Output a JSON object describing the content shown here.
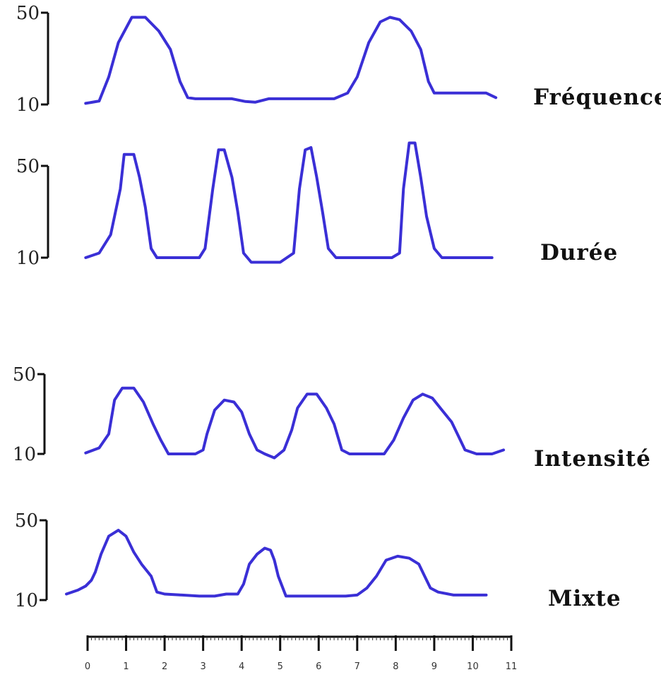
{
  "chart_data": {
    "type": "line",
    "title": "",
    "xlabel": "",
    "ylabel": "",
    "grid": false,
    "line_color": "#3a2fd6",
    "x_ticks": [
      0,
      1,
      2,
      3,
      4,
      5,
      6,
      7,
      8,
      9,
      10,
      11
    ],
    "x_tick_labels": [
      "0",
      "1",
      "2",
      "3",
      "4",
      "5",
      "6",
      "7",
      "8",
      "9",
      "10",
      "11"
    ],
    "xlim": [
      0,
      11
    ],
    "panels": [
      {
        "label": "Fréquence",
        "y_tick_labels": [
          "50",
          "10"
        ],
        "ylim": [
          10,
          50
        ],
        "points": [
          [
            -0.05,
            10.5
          ],
          [
            0.3,
            11.5
          ],
          [
            0.55,
            22
          ],
          [
            0.8,
            37
          ],
          [
            1.15,
            48
          ],
          [
            1.5,
            48
          ],
          [
            1.85,
            42
          ],
          [
            2.15,
            34
          ],
          [
            2.4,
            20
          ],
          [
            2.6,
            13
          ],
          [
            2.8,
            12.5
          ],
          [
            3.3,
            12.5
          ],
          [
            3.75,
            12.5
          ],
          [
            4.1,
            11.3
          ],
          [
            4.35,
            11
          ],
          [
            4.7,
            12.5
          ],
          [
            5.3,
            12.5
          ],
          [
            6.0,
            12.5
          ],
          [
            6.4,
            12.5
          ],
          [
            6.75,
            15
          ],
          [
            7.0,
            22
          ],
          [
            7.3,
            37
          ],
          [
            7.6,
            46
          ],
          [
            7.85,
            48
          ],
          [
            8.1,
            47
          ],
          [
            8.4,
            42
          ],
          [
            8.65,
            34
          ],
          [
            8.85,
            20
          ],
          [
            9.0,
            15
          ],
          [
            9.5,
            15
          ],
          [
            10.0,
            15
          ],
          [
            10.35,
            15
          ],
          [
            10.6,
            13
          ]
        ]
      },
      {
        "label": "Durée",
        "y_tick_labels": [
          "50",
          "10"
        ],
        "ylim": [
          10,
          50
        ],
        "points": [
          [
            -0.05,
            10
          ],
          [
            0.3,
            12
          ],
          [
            0.6,
            20
          ],
          [
            0.85,
            40
          ],
          [
            0.95,
            55
          ],
          [
            1.2,
            55
          ],
          [
            1.35,
            45
          ],
          [
            1.5,
            32
          ],
          [
            1.65,
            14
          ],
          [
            1.8,
            10
          ],
          [
            2.5,
            10
          ],
          [
            2.9,
            10
          ],
          [
            3.05,
            14
          ],
          [
            3.25,
            40
          ],
          [
            3.4,
            57
          ],
          [
            3.55,
            57
          ],
          [
            3.75,
            45
          ],
          [
            3.9,
            30
          ],
          [
            4.05,
            12
          ],
          [
            4.25,
            8
          ],
          [
            4.6,
            8
          ],
          [
            5.0,
            8
          ],
          [
            5.35,
            12
          ],
          [
            5.5,
            40
          ],
          [
            5.65,
            57
          ],
          [
            5.8,
            58
          ],
          [
            5.95,
            45
          ],
          [
            6.1,
            30
          ],
          [
            6.25,
            14
          ],
          [
            6.45,
            10
          ],
          [
            7.2,
            10
          ],
          [
            7.9,
            10
          ],
          [
            8.1,
            12
          ],
          [
            8.2,
            40
          ],
          [
            8.35,
            60
          ],
          [
            8.5,
            60
          ],
          [
            8.65,
            45
          ],
          [
            8.8,
            28
          ],
          [
            9.0,
            14
          ],
          [
            9.2,
            10
          ],
          [
            9.8,
            10
          ],
          [
            10.5,
            10
          ]
        ]
      },
      {
        "label": "Intensité",
        "y_tick_labels": [
          "50",
          "10"
        ],
        "ylim": [
          10,
          50
        ],
        "points": [
          [
            -0.05,
            10.5
          ],
          [
            0.3,
            13
          ],
          [
            0.55,
            20
          ],
          [
            0.7,
            37
          ],
          [
            0.9,
            43
          ],
          [
            1.2,
            43
          ],
          [
            1.45,
            36
          ],
          [
            1.7,
            25
          ],
          [
            1.9,
            17
          ],
          [
            2.1,
            10
          ],
          [
            2.5,
            10
          ],
          [
            2.8,
            10
          ],
          [
            3.0,
            12
          ],
          [
            3.1,
            20
          ],
          [
            3.3,
            32
          ],
          [
            3.55,
            37
          ],
          [
            3.8,
            36
          ],
          [
            4.0,
            31
          ],
          [
            4.2,
            20
          ],
          [
            4.4,
            12
          ],
          [
            4.6,
            10
          ],
          [
            4.85,
            8
          ],
          [
            5.1,
            12
          ],
          [
            5.3,
            22
          ],
          [
            5.45,
            33
          ],
          [
            5.7,
            40
          ],
          [
            5.95,
            40
          ],
          [
            6.2,
            33
          ],
          [
            6.4,
            25
          ],
          [
            6.6,
            12
          ],
          [
            6.8,
            10
          ],
          [
            7.3,
            10
          ],
          [
            7.7,
            10
          ],
          [
            7.95,
            17
          ],
          [
            8.2,
            28
          ],
          [
            8.45,
            37
          ],
          [
            8.7,
            40
          ],
          [
            8.95,
            38
          ],
          [
            9.2,
            32
          ],
          [
            9.45,
            26
          ],
          [
            9.65,
            18
          ],
          [
            9.8,
            12
          ],
          [
            10.1,
            10
          ],
          [
            10.5,
            10
          ],
          [
            10.8,
            12
          ]
        ]
      },
      {
        "label": "Mixte",
        "y_tick_labels": [
          "50",
          "10"
        ],
        "ylim": [
          10,
          50
        ],
        "points": [
          [
            -0.55,
            13
          ],
          [
            -0.25,
            15
          ],
          [
            -0.05,
            17
          ],
          [
            0.1,
            20
          ],
          [
            0.2,
            24
          ],
          [
            0.35,
            33
          ],
          [
            0.55,
            42
          ],
          [
            0.8,
            45
          ],
          [
            1.0,
            42
          ],
          [
            1.2,
            34
          ],
          [
            1.4,
            28
          ],
          [
            1.65,
            22
          ],
          [
            1.8,
            14
          ],
          [
            2.0,
            13
          ],
          [
            2.45,
            12.5
          ],
          [
            2.9,
            12
          ],
          [
            3.3,
            12
          ],
          [
            3.6,
            13
          ],
          [
            3.9,
            13
          ],
          [
            4.05,
            18
          ],
          [
            4.2,
            28
          ],
          [
            4.4,
            33
          ],
          [
            4.6,
            36
          ],
          [
            4.75,
            35
          ],
          [
            4.85,
            30
          ],
          [
            4.95,
            22
          ],
          [
            5.15,
            12
          ],
          [
            5.5,
            12
          ],
          [
            6.2,
            12
          ],
          [
            6.7,
            12
          ],
          [
            7.0,
            12.5
          ],
          [
            7.25,
            16
          ],
          [
            7.5,
            22
          ],
          [
            7.75,
            30
          ],
          [
            8.05,
            32
          ],
          [
            8.35,
            31
          ],
          [
            8.6,
            28
          ],
          [
            8.75,
            22
          ],
          [
            8.9,
            16
          ],
          [
            9.1,
            14
          ],
          [
            9.5,
            12.5
          ],
          [
            10.0,
            12.5
          ],
          [
            10.35,
            12.5
          ]
        ]
      }
    ]
  }
}
